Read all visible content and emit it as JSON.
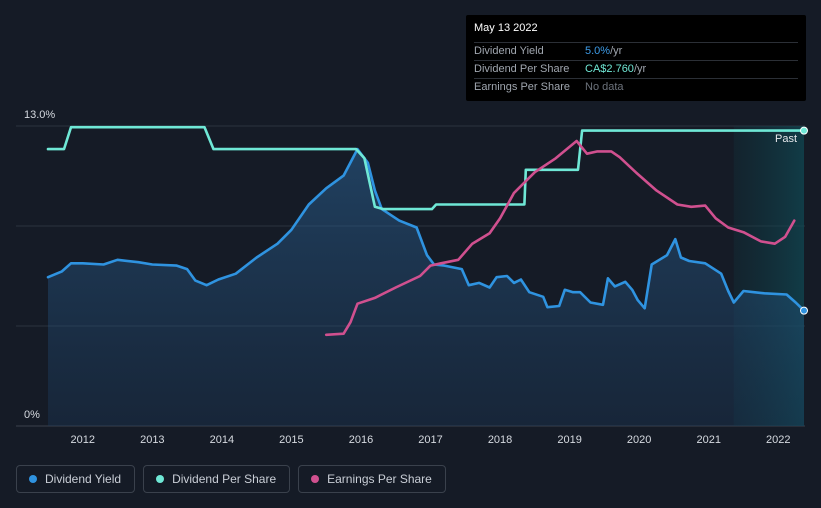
{
  "tooltip": {
    "date": "May 13 2022",
    "rows": [
      {
        "label": "Dividend Yield",
        "value": "5.0%",
        "unit": " /yr"
      },
      {
        "label": "Dividend Per Share",
        "value": "CA$2.760",
        "unit": " /yr"
      },
      {
        "label": "Earnings Per Share",
        "value": "No data",
        "unit": ""
      }
    ]
  },
  "legend": {
    "items": [
      {
        "label": "Dividend Yield",
        "color": "#2f93e0"
      },
      {
        "label": "Dividend Per Share",
        "color": "#6fe8d6"
      },
      {
        "label": "Earnings Per Share",
        "color": "#d0508f"
      }
    ]
  },
  "colors": {
    "background": "#151b26",
    "yield": "#2f93e0",
    "dps": "#6fe8d6",
    "eps": "#d0508f",
    "grid": "#2c333e"
  },
  "chart_data": {
    "type": "line",
    "y_axis_labels": [
      "13.0%",
      "0%"
    ],
    "ylim": [
      0,
      13
    ],
    "xlim": [
      2011.5,
      2022.37
    ],
    "x_tick_labels": [
      "2012",
      "2013",
      "2014",
      "2015",
      "2016",
      "2017",
      "2018",
      "2019",
      "2020",
      "2021",
      "2022"
    ],
    "x_ticks": [
      2012,
      2013,
      2014,
      2015,
      2016,
      2017,
      2018,
      2019,
      2020,
      2021,
      2022
    ],
    "past_label": "Past",
    "forecast_start": 2021.36,
    "series": [
      {
        "name": "Dividend Yield",
        "key": "yield",
        "area": true,
        "points": [
          [
            2011.5,
            6.45
          ],
          [
            2011.7,
            6.7
          ],
          [
            2011.83,
            7.05
          ],
          [
            2012.0,
            7.05
          ],
          [
            2012.3,
            7.0
          ],
          [
            2012.5,
            7.2
          ],
          [
            2012.8,
            7.1
          ],
          [
            2013.0,
            7.0
          ],
          [
            2013.35,
            6.95
          ],
          [
            2013.5,
            6.8
          ],
          [
            2013.62,
            6.3
          ],
          [
            2013.78,
            6.1
          ],
          [
            2013.95,
            6.35
          ],
          [
            2014.2,
            6.6
          ],
          [
            2014.5,
            7.3
          ],
          [
            2014.8,
            7.9
          ],
          [
            2015.0,
            8.5
          ],
          [
            2015.25,
            9.6
          ],
          [
            2015.5,
            10.3
          ],
          [
            2015.75,
            10.85
          ],
          [
            2015.95,
            12.0
          ],
          [
            2016.1,
            11.4
          ],
          [
            2016.2,
            10.2
          ],
          [
            2016.3,
            9.4
          ],
          [
            2016.55,
            8.9
          ],
          [
            2016.8,
            8.6
          ],
          [
            2016.95,
            7.4
          ],
          [
            2017.05,
            7.0
          ],
          [
            2017.2,
            6.95
          ],
          [
            2017.45,
            6.8
          ],
          [
            2017.55,
            6.1
          ],
          [
            2017.7,
            6.2
          ],
          [
            2017.85,
            6.0
          ],
          [
            2017.95,
            6.45
          ],
          [
            2018.1,
            6.5
          ],
          [
            2018.2,
            6.2
          ],
          [
            2018.3,
            6.35
          ],
          [
            2018.42,
            5.8
          ],
          [
            2018.62,
            5.6
          ],
          [
            2018.68,
            5.15
          ],
          [
            2018.85,
            5.2
          ],
          [
            2018.93,
            5.9
          ],
          [
            2019.05,
            5.8
          ],
          [
            2019.15,
            5.8
          ],
          [
            2019.3,
            5.35
          ],
          [
            2019.48,
            5.25
          ],
          [
            2019.55,
            6.4
          ],
          [
            2019.65,
            6.05
          ],
          [
            2019.8,
            6.25
          ],
          [
            2019.9,
            5.9
          ],
          [
            2019.98,
            5.45
          ],
          [
            2020.08,
            5.1
          ],
          [
            2020.18,
            7.0
          ],
          [
            2020.4,
            7.4
          ],
          [
            2020.52,
            8.1
          ],
          [
            2020.6,
            7.3
          ],
          [
            2020.72,
            7.15
          ],
          [
            2020.95,
            7.05
          ],
          [
            2021.18,
            6.6
          ],
          [
            2021.28,
            5.85
          ],
          [
            2021.36,
            5.35
          ],
          [
            2021.5,
            5.85
          ],
          [
            2021.65,
            5.8
          ],
          [
            2021.8,
            5.75
          ],
          [
            2022.12,
            5.7
          ],
          [
            2022.25,
            5.35
          ],
          [
            2022.37,
            5.0
          ]
        ]
      },
      {
        "name": "Dividend Per Share",
        "key": "dps",
        "area": false,
        "points": [
          [
            2011.5,
            12.0
          ],
          [
            2011.73,
            12.0
          ],
          [
            2011.83,
            12.95
          ],
          [
            2013.75,
            12.95
          ],
          [
            2013.88,
            12.0
          ],
          [
            2015.93,
            12.0
          ],
          [
            2016.05,
            11.6
          ],
          [
            2016.2,
            9.5
          ],
          [
            2016.32,
            9.4
          ],
          [
            2017.02,
            9.4
          ],
          [
            2017.08,
            9.6
          ],
          [
            2018.35,
            9.6
          ],
          [
            2018.37,
            11.1
          ],
          [
            2019.12,
            11.1
          ],
          [
            2019.18,
            12.8
          ],
          [
            2022.37,
            12.8
          ]
        ]
      },
      {
        "name": "Earnings Per Share",
        "key": "eps",
        "area": false,
        "points": [
          [
            2015.5,
            3.95
          ],
          [
            2015.75,
            4.0
          ],
          [
            2015.85,
            4.5
          ],
          [
            2015.95,
            5.3
          ],
          [
            2016.2,
            5.55
          ],
          [
            2016.5,
            6.0
          ],
          [
            2016.85,
            6.5
          ],
          [
            2017.0,
            6.95
          ],
          [
            2017.15,
            7.05
          ],
          [
            2017.4,
            7.2
          ],
          [
            2017.6,
            7.9
          ],
          [
            2017.85,
            8.35
          ],
          [
            2018.0,
            9.0
          ],
          [
            2018.2,
            10.1
          ],
          [
            2018.5,
            11.0
          ],
          [
            2018.8,
            11.6
          ],
          [
            2019.1,
            12.35
          ],
          [
            2019.25,
            11.8
          ],
          [
            2019.4,
            11.9
          ],
          [
            2019.6,
            11.9
          ],
          [
            2019.72,
            11.65
          ],
          [
            2019.95,
            11.0
          ],
          [
            2020.25,
            10.2
          ],
          [
            2020.55,
            9.6
          ],
          [
            2020.75,
            9.5
          ],
          [
            2020.95,
            9.55
          ],
          [
            2021.1,
            9.0
          ],
          [
            2021.28,
            8.6
          ],
          [
            2021.5,
            8.4
          ],
          [
            2021.75,
            8.0
          ],
          [
            2021.95,
            7.9
          ],
          [
            2022.1,
            8.2
          ],
          [
            2022.23,
            8.9
          ]
        ]
      }
    ]
  }
}
